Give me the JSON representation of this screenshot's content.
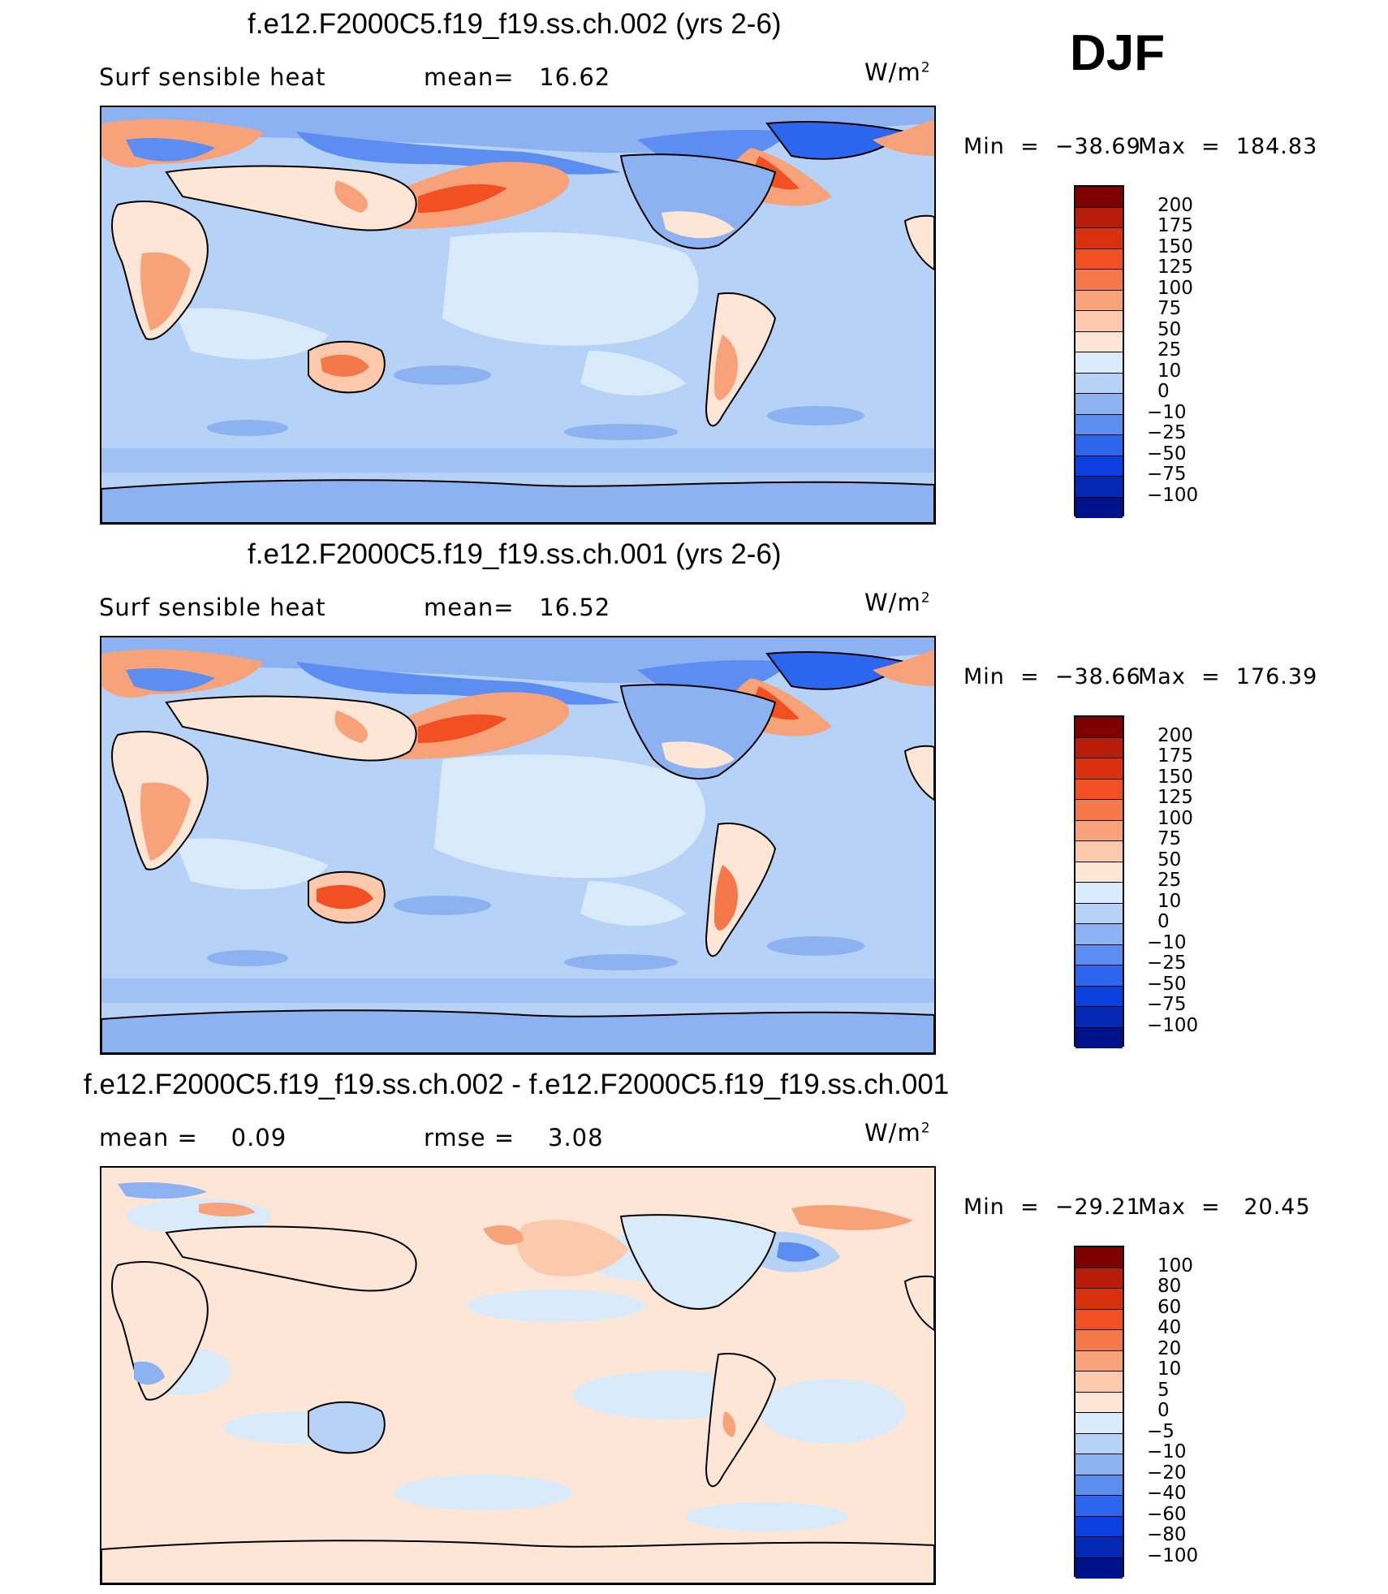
{
  "season": "DJF",
  "panels": [
    {
      "title": "f.e12.F2000C5.f19_f19.ss.ch.002 (yrs 2-6)",
      "left_text": "Surf sensible heat",
      "mid_text": "mean=   16.62",
      "units": "W/m",
      "units_sup": "2",
      "min_label": "Min  =  −38.69",
      "max_label": "Max  =  184.83",
      "palette": "full",
      "ocean_color": "#cfe5f7",
      "colorbar": {
        "colors": [
          "#7f0000",
          "#b81d0c",
          "#d93010",
          "#f25022",
          "#f4784a",
          "#f8a27a",
          "#fcc9ad",
          "#fde6d5",
          "#d9ebfa",
          "#b6d2f6",
          "#8cb2f2",
          "#5b8ef0",
          "#2c66ee",
          "#0b3fe0",
          "#0328b6",
          "#00118c"
        ],
        "labels": [
          "200",
          "175",
          "150",
          "125",
          "100",
          "75",
          "50",
          "25",
          "10",
          "0",
          "−10",
          "−25",
          "−50",
          "−75",
          "−100"
        ]
      }
    },
    {
      "title": "f.e12.F2000C5.f19_f19.ss.ch.001 (yrs 2-6)",
      "left_text": "Surf sensible heat",
      "mid_text": "mean=   16.52",
      "units": "W/m",
      "units_sup": "2",
      "min_label": "Min  =  −38.66",
      "max_label": "Max  =  176.39",
      "palette": "full",
      "ocean_color": "#cfe5f7",
      "colorbar": {
        "colors": [
          "#7f0000",
          "#b81d0c",
          "#d93010",
          "#f25022",
          "#f4784a",
          "#f8a27a",
          "#fcc9ad",
          "#fde6d5",
          "#d9ebfa",
          "#b6d2f6",
          "#8cb2f2",
          "#5b8ef0",
          "#2c66ee",
          "#0b3fe0",
          "#0328b6",
          "#00118c"
        ],
        "labels": [
          "200",
          "175",
          "150",
          "125",
          "100",
          "75",
          "50",
          "25",
          "10",
          "0",
          "−10",
          "−25",
          "−50",
          "−75",
          "−100"
        ]
      }
    },
    {
      "title": "f.e12.F2000C5.f19_f19.ss.ch.002 - f.e12.F2000C5.f19_f19.ss.ch.001",
      "left_text": "mean =    0.09",
      "mid_text": "rmse =    3.08",
      "units": "W/m",
      "units_sup": "2",
      "min_label": "Min  =  −29.21",
      "max_label": "Max  =   20.45",
      "palette": "diff",
      "ocean_color": "#fde6d5",
      "colorbar": {
        "colors": [
          "#7f0000",
          "#b81d0c",
          "#d93010",
          "#f25022",
          "#f4784a",
          "#f8a27a",
          "#fcc9ad",
          "#fde6d5",
          "#d9ebfa",
          "#b6d2f6",
          "#8cb2f2",
          "#5b8ef0",
          "#2c66ee",
          "#0b3fe0",
          "#0328b6",
          "#00118c"
        ],
        "labels": [
          "100",
          "80",
          "60",
          "40",
          "20",
          "10",
          "5",
          "0",
          "−5",
          "−10",
          "−20",
          "−40",
          "−60",
          "−80",
          "−100"
        ]
      }
    }
  ]
}
